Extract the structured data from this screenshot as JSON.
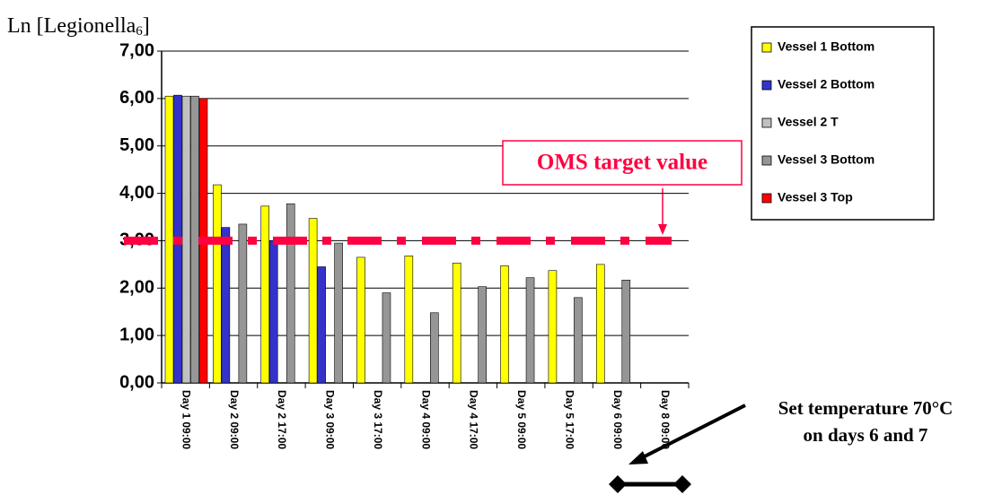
{
  "chart_data": {
    "type": "bar",
    "y_label": [
      "Ln [Legionella",
      "6",
      "]"
    ],
    "categories": [
      "Day 1 09:00",
      "Day 2 09:00",
      "Day 2 17:00",
      "Day 3 09:00",
      "Day 3 17:00",
      "Day 4 09:00",
      "Day 4 17:00",
      "Day 5 09:00",
      "Day 5 17:00",
      "Day 6 09:00",
      "Day 8 09:00"
    ],
    "series": [
      {
        "name": "Vessel 1 Bottom",
        "color": "#ffff00",
        "values": [
          6.05,
          4.18,
          3.73,
          3.47,
          2.65,
          2.68,
          2.53,
          2.47,
          2.37,
          2.5,
          null
        ]
      },
      {
        "name": "Vessel 2 Bottom",
        "color": "#3333cc",
        "values": [
          6.07,
          3.28,
          3.0,
          2.45,
          null,
          null,
          null,
          null,
          null,
          null,
          null
        ]
      },
      {
        "name": "Vessel 2 T",
        "color": "#c0c0c0",
        "values": [
          6.05,
          null,
          null,
          null,
          null,
          null,
          null,
          null,
          null,
          null,
          null
        ]
      },
      {
        "name": "Vessel 3 Bottom",
        "color": "#969696",
        "values": [
          6.05,
          3.35,
          3.78,
          2.95,
          1.9,
          1.48,
          2.03,
          2.22,
          1.8,
          2.17,
          null
        ]
      },
      {
        "name": "Vessel 3 Top",
        "color": "#ff0000",
        "values": [
          6.0,
          null,
          null,
          null,
          null,
          null,
          null,
          null,
          null,
          null,
          null
        ]
      }
    ],
    "ylim": [
      0,
      7
    ],
    "yticks": [
      {
        "value": 0,
        "label": "0,00"
      },
      {
        "value": 1,
        "label": "1,00"
      },
      {
        "value": 2,
        "label": "2,00"
      },
      {
        "value": 3,
        "label": "3,00"
      },
      {
        "value": 4,
        "label": "4,00"
      },
      {
        "value": 5,
        "label": "5,00"
      },
      {
        "value": 6,
        "label": "6,00"
      },
      {
        "value": 7,
        "label": "7,00"
      }
    ],
    "grid": true,
    "legend": "right",
    "target": {
      "value": 3,
      "label": "OMS target value",
      "color": "#ff0040"
    },
    "note": [
      "Set temperature 70°C",
      "on days 6 and 7"
    ]
  }
}
